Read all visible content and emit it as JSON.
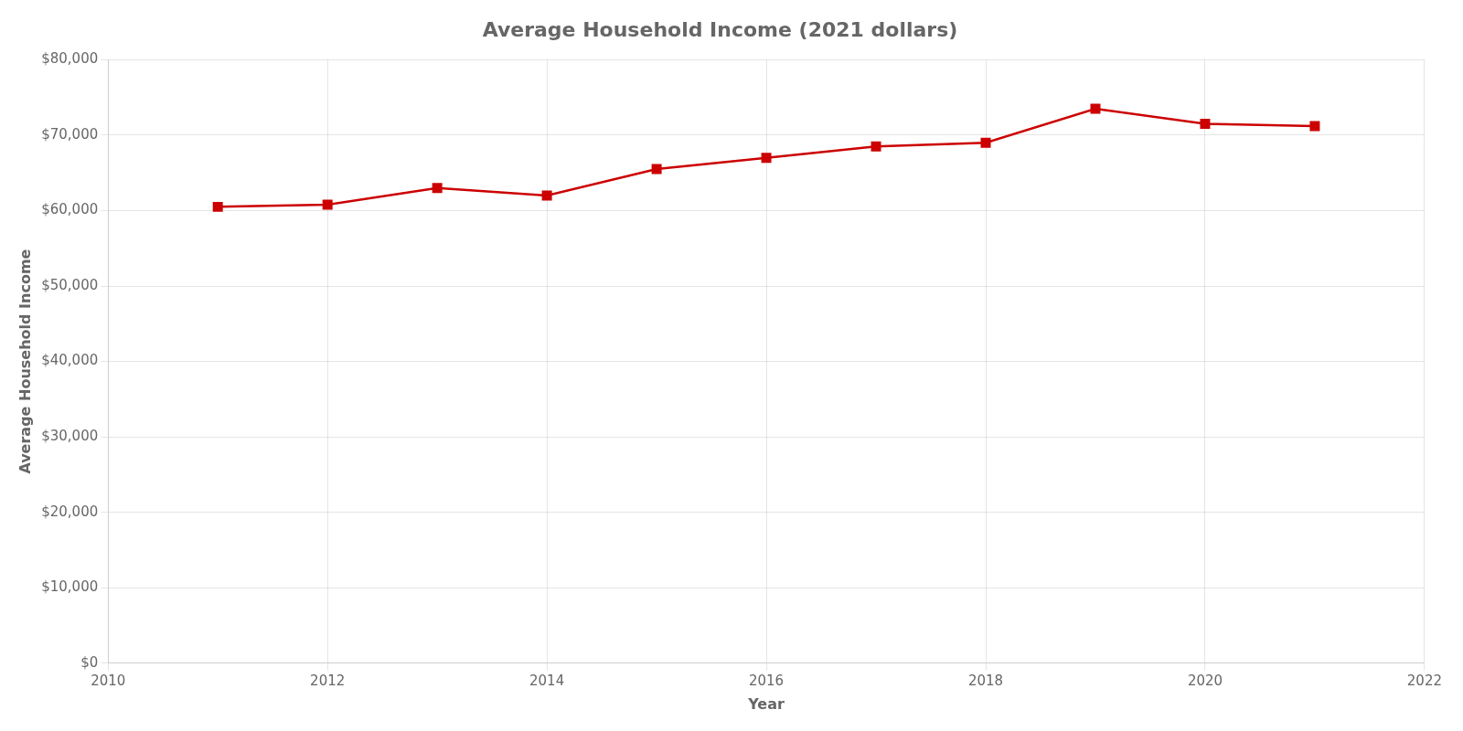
{
  "chart_data": {
    "type": "line",
    "title": "Average Household Income (2021 dollars)",
    "xlabel": "Year",
    "ylabel": "Average Household Income",
    "x": [
      2011,
      2012,
      2013,
      2014,
      2015,
      2016,
      2017,
      2018,
      2019,
      2020,
      2021
    ],
    "values": [
      60500,
      60800,
      63000,
      62000,
      65500,
      67000,
      68500,
      69000,
      73500,
      71500,
      71200
    ],
    "color": "#CC0000",
    "marker": "square",
    "xlim": [
      2010,
      2022
    ],
    "xticks": [
      2010,
      2012,
      2014,
      2016,
      2018,
      2020,
      2022
    ],
    "ylim": [
      0,
      80000
    ],
    "yticks": [
      {
        "value": 0,
        "label": "$0"
      },
      {
        "value": 10000,
        "label": "$10,000"
      },
      {
        "value": 20000,
        "label": "$20,000"
      },
      {
        "value": 30000,
        "label": "$30,000"
      },
      {
        "value": 40000,
        "label": "$40,000"
      },
      {
        "value": 50000,
        "label": "$50,000"
      },
      {
        "value": 60000,
        "label": "$60,000"
      },
      {
        "value": 70000,
        "label": "$70,000"
      },
      {
        "value": 80000,
        "label": "$80,000"
      }
    ],
    "grid": true
  }
}
